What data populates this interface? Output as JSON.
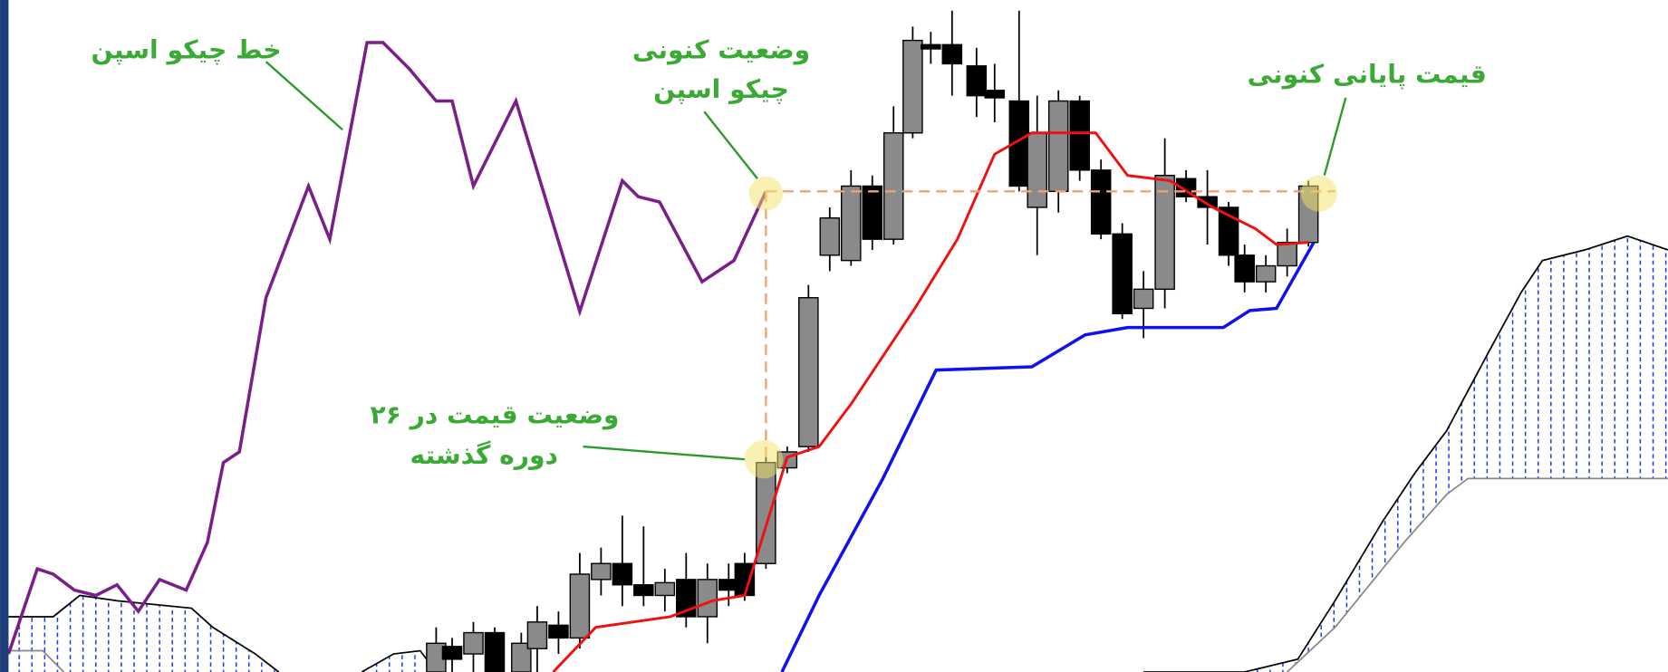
{
  "annotations": {
    "chikou_line": "خط چیکو اسپن",
    "chikou_now": [
      "وضعیت کنونی",
      "چیکو اسپن"
    ],
    "close_now": "قیمت پایانی کنونی",
    "price_26": [
      "وضعیت قیمت در ۲۶",
      "دوره گذشته"
    ]
  }
}
